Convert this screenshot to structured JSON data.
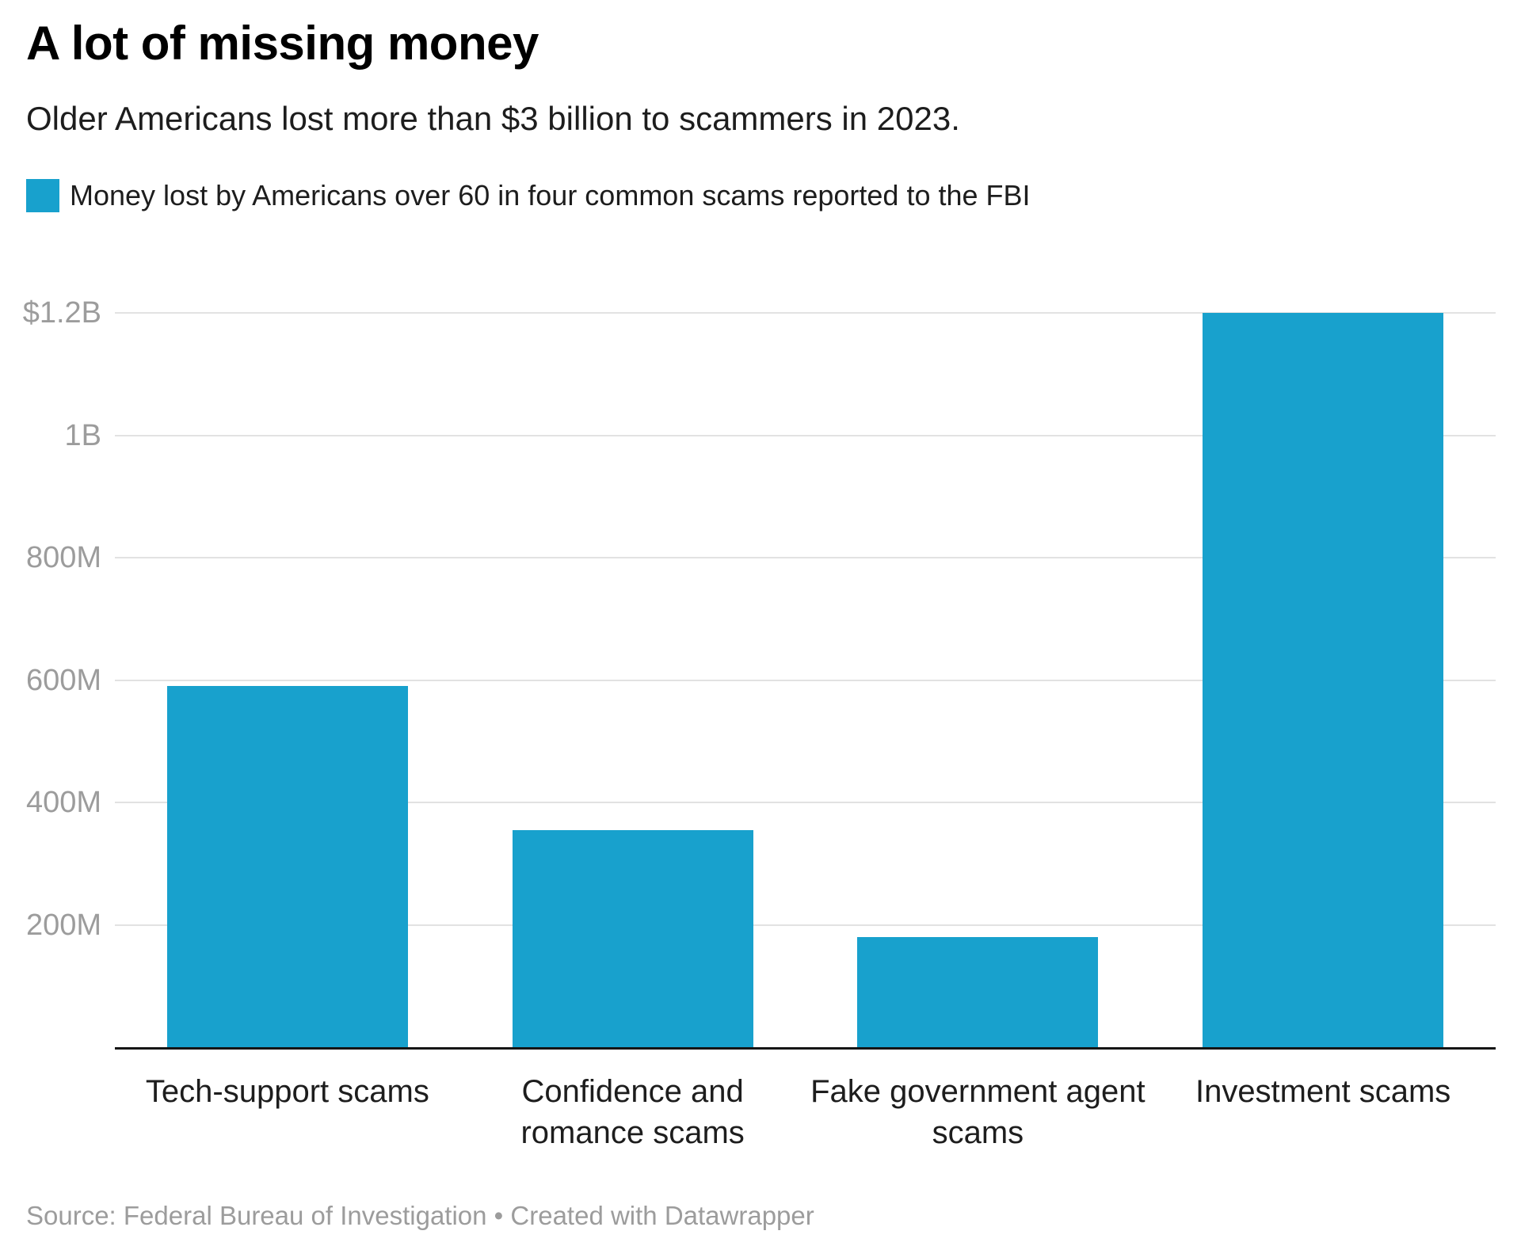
{
  "header": {
    "title": "A lot of missing money",
    "subtitle": "Older Americans lost more than $3 billion to scammers in 2023."
  },
  "legend": {
    "label": "Money lost by Americans over 60 in four common scams reported to the FBI",
    "swatch_color": "#18a1cd"
  },
  "source": {
    "text": "Source: Federal Bureau of Investigation • Created with Datawrapper"
  },
  "colors": {
    "bar": "#18a1cd",
    "grid": "#e2e2e2",
    "tick_text": "#9c9c9c",
    "axis": "#151515",
    "label_text": "#1d1d1d"
  },
  "chart_data": {
    "type": "bar",
    "title": "A lot of missing money",
    "subtitle": "Older Americans lost more than $3 billion to scammers in 2023.",
    "legend_label": "Money lost by Americans over 60 in four common scams reported to the FBI",
    "unit": "USD",
    "categories": [
      "Tech-support scams",
      "Confidence and romance scams",
      "Fake government agent scams",
      "Investment scams"
    ],
    "category_display": [
      "Tech-support scams",
      "Confidence and\nromance scams",
      "Fake government agent\nscams",
      "Investment scams"
    ],
    "values_million_usd": [
      590,
      355,
      180,
      1200
    ],
    "y_ticks": [
      {
        "value": 1200,
        "label": "$1.2B"
      },
      {
        "value": 1000,
        "label": "1B"
      },
      {
        "value": 800,
        "label": "800M"
      },
      {
        "value": 600,
        "label": "600M"
      },
      {
        "value": 400,
        "label": "400M"
      },
      {
        "value": 200,
        "label": "200M"
      }
    ],
    "ylim": [
      0,
      1200
    ],
    "grid": true,
    "legend_position": "top-left",
    "xlabel": "",
    "ylabel": ""
  }
}
